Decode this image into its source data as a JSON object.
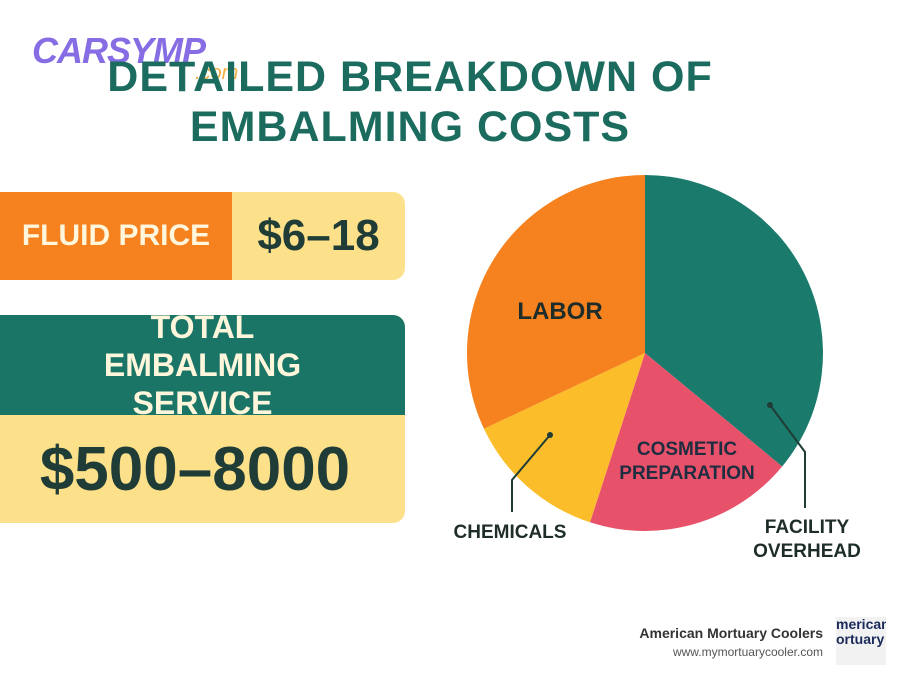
{
  "watermark": {
    "brand": "CARSYMP",
    "domain": ".com"
  },
  "header": {
    "title": "DETAILED BREAKDOWN OF EMBALMING COSTS"
  },
  "cards": [
    {
      "label": "FLUID PRICE",
      "value": "$6–18"
    },
    {
      "label": "TOTAL EMBALMING SERVICE",
      "value": "$500–8000"
    }
  ],
  "chart_data": {
    "type": "pie",
    "categories": [
      "FACILITY OVERHEAD",
      "COSMETIC PREPARATION",
      "CHEMICALS",
      "LABOR"
    ],
    "values": [
      36,
      19,
      13,
      32
    ],
    "colors": [
      "#1a7a6c",
      "#e8516a",
      "#fbbd2a",
      "#f5821f"
    ]
  },
  "footer": {
    "company": "American Mortuary Coolers",
    "url": "www.mymortuarycooler.com",
    "logo": [
      "merican",
      "ortuary"
    ]
  }
}
